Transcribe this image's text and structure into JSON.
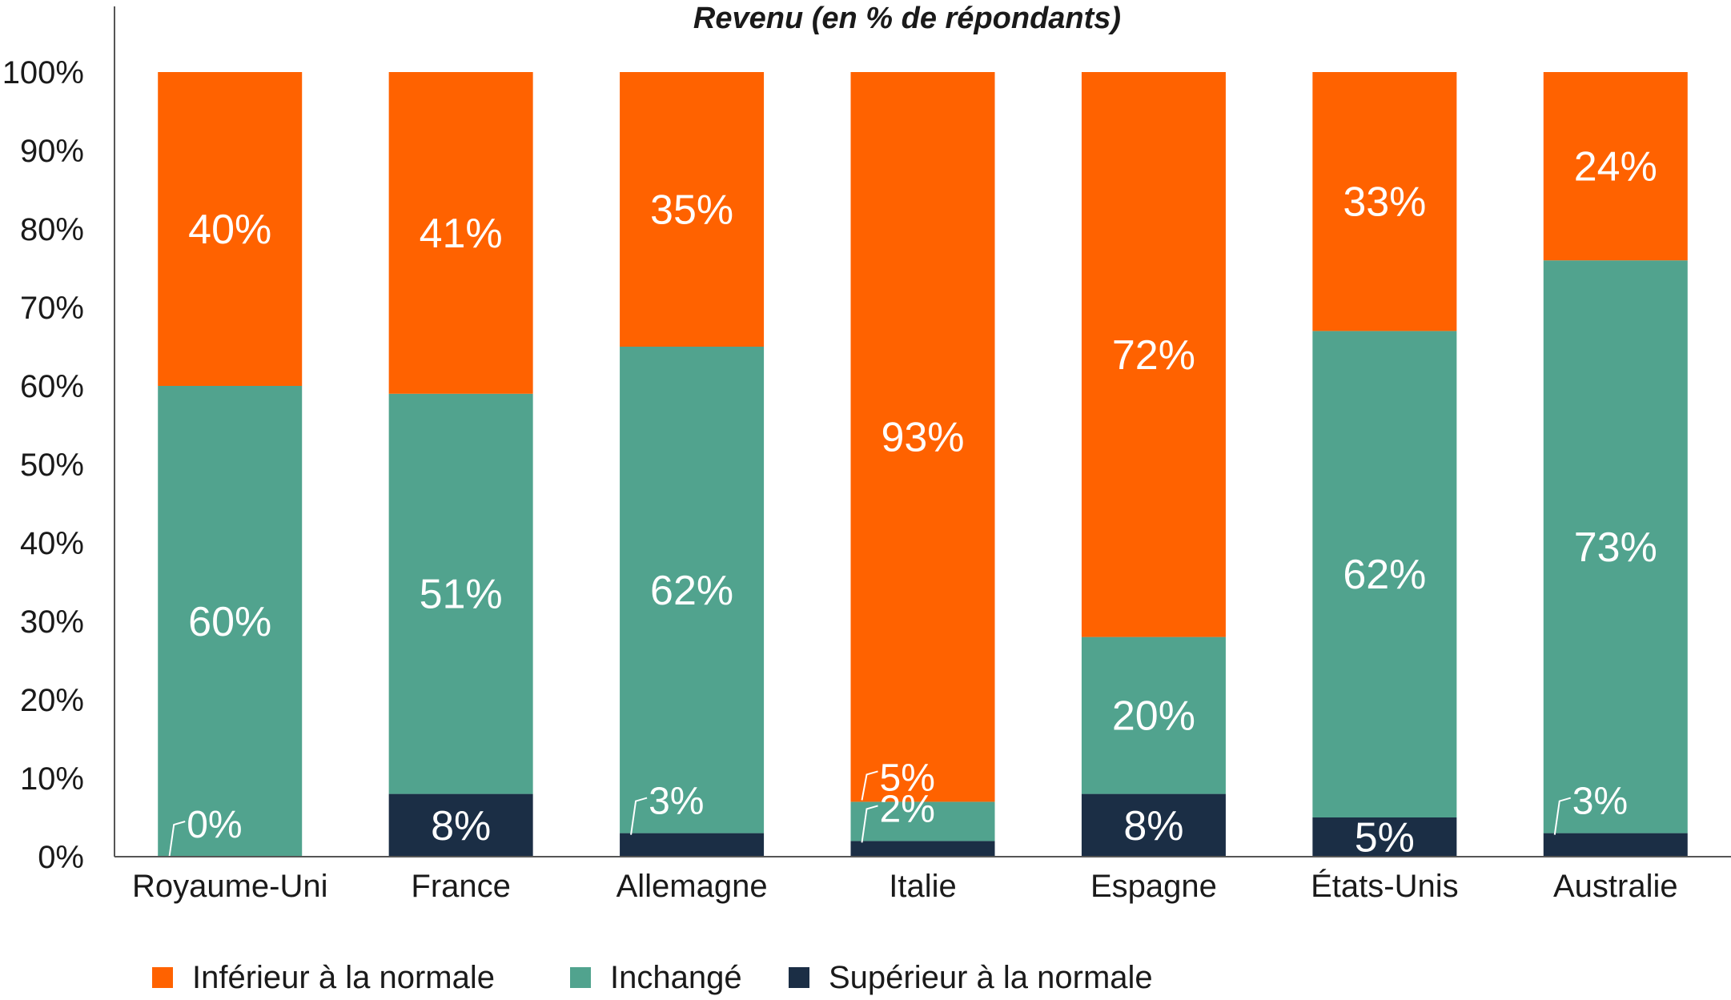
{
  "chart_data": {
    "type": "bar",
    "stacked": true,
    "title": "Revenu (en % de répondants)",
    "xlabel": "",
    "ylabel": "",
    "ylim": [
      0,
      100
    ],
    "yticks": [
      "0%",
      "10%",
      "20%",
      "30%",
      "40%",
      "50%",
      "60%",
      "70%",
      "80%",
      "90%",
      "100%"
    ],
    "categories": [
      "Royaume-Uni",
      "France",
      "Allemagne",
      "Italie",
      "Espagne",
      "États-Unis",
      "Australie"
    ],
    "series": [
      {
        "name": "Supérieur à la normale",
        "color": "#1b2e45",
        "values": [
          0,
          8,
          3,
          2,
          8,
          5,
          3
        ],
        "labels": [
          "0%",
          "8%",
          "3%",
          "2%",
          "8%",
          "5%",
          "3%"
        ]
      },
      {
        "name": "Inchangé",
        "color": "#51a38e",
        "values": [
          60,
          51,
          62,
          5,
          20,
          62,
          73
        ],
        "labels": [
          "60%",
          "51%",
          "62%",
          "5%",
          "20%",
          "62%",
          "73%"
        ]
      },
      {
        "name": "Inférieur à la normale",
        "color": "#ff6200",
        "values": [
          40,
          41,
          35,
          93,
          72,
          33,
          24
        ],
        "labels": [
          "40%",
          "41%",
          "35%",
          "93%",
          "72%",
          "33%",
          "24%"
        ]
      }
    ],
    "legend_order": [
      2,
      1,
      0
    ],
    "legend_position": "bottom",
    "grid": false
  }
}
